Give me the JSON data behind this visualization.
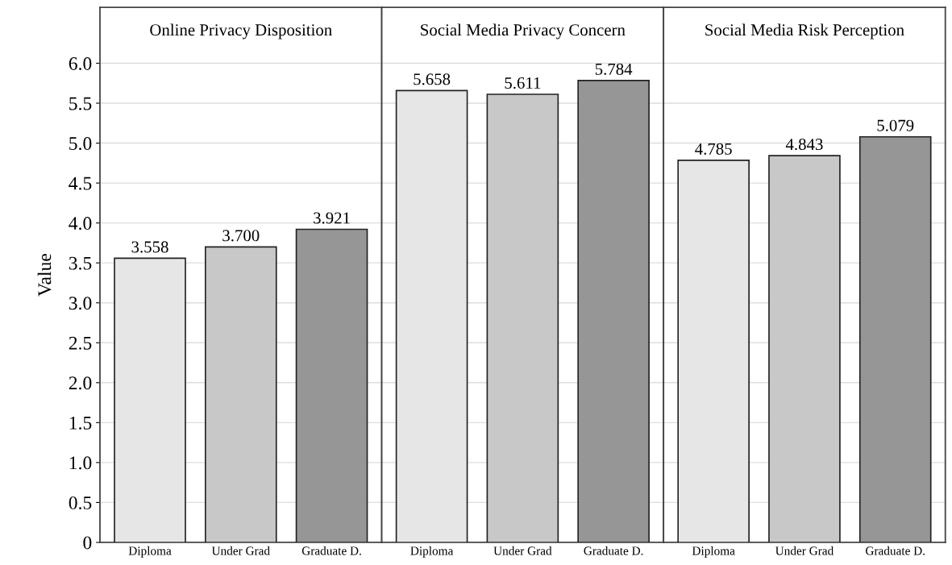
{
  "chart_data": [
    {
      "type": "bar",
      "title": "Online Privacy Disposition",
      "ylabel": "Value",
      "categories": [
        "Diploma",
        "Under Grad",
        "Graduate D."
      ],
      "values": [
        3.558,
        3.7,
        3.921
      ],
      "value_labels": [
        "3.558",
        "3.700",
        "3.921"
      ],
      "colors": [
        "#e6e6e6",
        "#c8c8c8",
        "#969696"
      ],
      "ylim": [
        0,
        6.7
      ],
      "yticks": [
        0,
        0.5,
        {
          "value": 1.0,
          "label": "1.0"
        },
        1.5,
        {
          "value": 2.0,
          "label": "2.0"
        },
        2.5,
        {
          "value": 3.0,
          "label": "3.0"
        },
        3.5,
        {
          "value": 4.0,
          "label": "4.0"
        },
        4.5,
        {
          "value": 5.0,
          "label": "5.0"
        },
        5.5,
        {
          "value": 6.0,
          "label": "6.0"
        }
      ],
      "grid": "y"
    },
    {
      "type": "bar",
      "title": "Social Media Privacy Concern",
      "categories": [
        "Diploma",
        "Under Grad",
        "Graduate D."
      ],
      "values": [
        5.658,
        5.611,
        5.784
      ],
      "data_labels": true,
      "colors": [
        "#e6e6e6",
        "#c8c8c8",
        "#969696"
      ],
      "ylim": [
        0,
        6.7
      ],
      "grid": "y",
      "tick_labels": "x"
    },
    {
      "type": "bar",
      "title": "Social Media Risk Perception",
      "categories": [
        "Diploma",
        "Under Grad",
        "Graduate D."
      ],
      "values": [
        4.785,
        4.843,
        5.079
      ],
      "data_labels": true,
      "colors": [
        "#e6e6e6",
        "#c8c8c8",
        "#969696"
      ],
      "ylim": [
        0,
        6.7
      ],
      "grid": "y",
      "tick_labels": "x"
    }
  ]
}
